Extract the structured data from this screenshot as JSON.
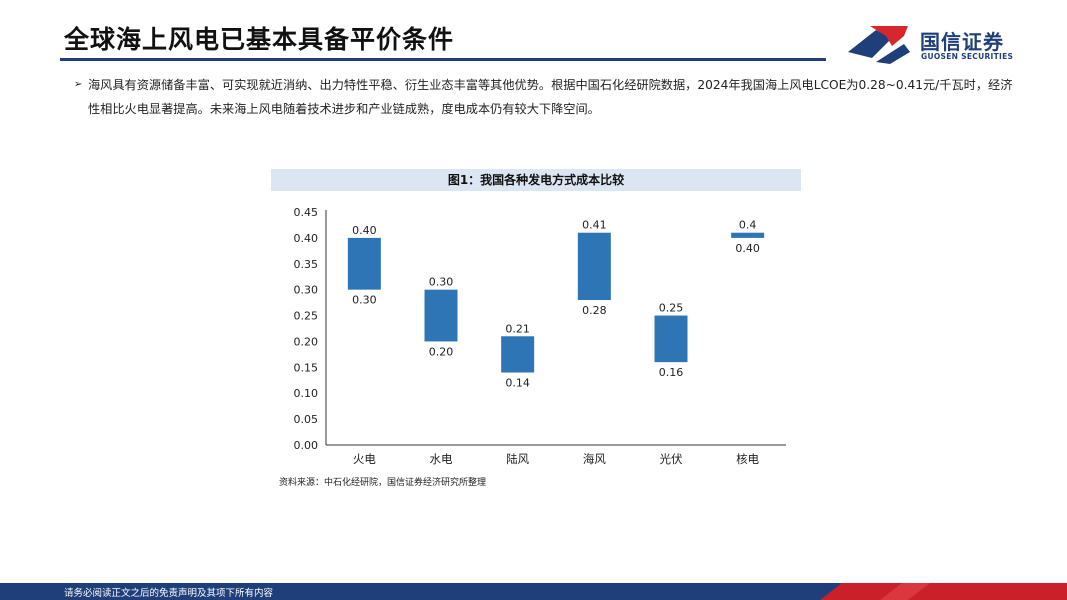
{
  "page": {
    "title": "全球海上风电已基本具备平价条件",
    "bullet_mark": "➢",
    "bullet": "海风具有资源储备丰富、可实现就近消纳、出力特性平稳、衍生业态丰富等其他优势。根据中国石化经研院数据，2024年我国海上风电LCOE为0.28~0.41元/千瓦时，经济性相比火电显著提高。未来海上风电随着技术进步和产业链成熟，度电成本仍有较大下降空间。",
    "source": "资料来源：中石化经研院，国信证券经济研究所整理",
    "footer": "请务必阅读正文之后的免责声明及其项下所有内容"
  },
  "logo": {
    "cn": "国信证券",
    "en": "GUOSEN SECURITIES",
    "colors": {
      "blue": "#1f3f7a",
      "red": "#d7262e"
    }
  },
  "chart_data": {
    "type": "bar",
    "subtype": "floating-range",
    "title": "图1：我国各种发电方式成本比较",
    "categories": [
      "火电",
      "水电",
      "陆风",
      "海风",
      "光伏",
      "核电"
    ],
    "low": [
      0.3,
      0.2,
      0.14,
      0.28,
      0.16,
      0.4
    ],
    "high": [
      0.4,
      0.3,
      0.21,
      0.41,
      0.25,
      0.41
    ],
    "low_labels": [
      "0.30",
      "0.20",
      "0.14",
      "0.28",
      "0.16",
      "0.40"
    ],
    "high_labels": [
      "0.40",
      "0.30",
      "0.21",
      "0.41",
      "0.25",
      "0.4"
    ],
    "ylim": [
      0,
      0.45
    ],
    "yticks": [
      "0.00",
      "0.05",
      "0.10",
      "0.15",
      "0.20",
      "0.25",
      "0.30",
      "0.35",
      "0.40",
      "0.45"
    ],
    "xlabel": "",
    "ylabel": "",
    "grid": false,
    "bar_color": "#2e75b6"
  }
}
